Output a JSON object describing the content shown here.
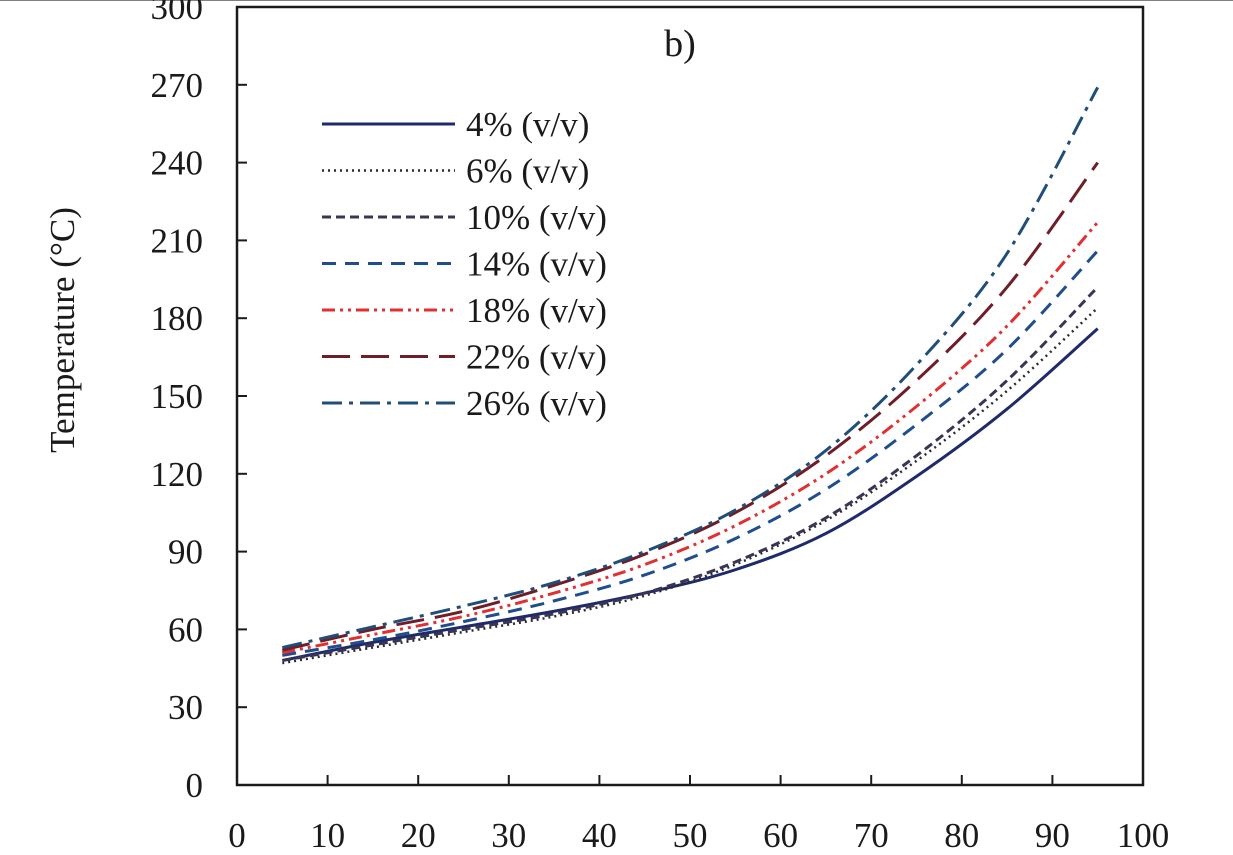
{
  "chart_data": {
    "type": "line",
    "panel_label": "b)",
    "title": "",
    "xlabel": "",
    "ylabel": "Temperature (°C)",
    "xlim": [
      0,
      100
    ],
    "ylim": [
      0,
      300
    ],
    "x_ticks": [
      0,
      10,
      20,
      30,
      40,
      50,
      60,
      70,
      80,
      90,
      100
    ],
    "y_ticks": [
      0,
      30,
      60,
      90,
      120,
      150,
      180,
      210,
      240,
      270,
      300
    ],
    "grid": false,
    "legend_position": "top-left",
    "x": [
      5,
      15,
      25,
      35,
      45,
      55,
      65,
      75,
      85,
      95
    ],
    "series": [
      {
        "name": "4% (v/v)",
        "color": "#1f2a6b",
        "style": "solid",
        "values": [
          48,
          55,
          61,
          67,
          74,
          83,
          97,
          119,
          145,
          176
        ]
      },
      {
        "name": "6% (v/v)",
        "color": "#2b2b2b",
        "style": "dotted",
        "values": [
          47,
          53,
          59,
          65,
          73,
          85,
          102,
          125,
          152,
          184
        ]
      },
      {
        "name": "10% (v/v)",
        "color": "#3a3555",
        "style": "dashed",
        "values": [
          48,
          54,
          60,
          66,
          74,
          86,
          103,
          127,
          156,
          192
        ]
      },
      {
        "name": "14% (v/v)",
        "color": "#1f4e8c",
        "style": "dashed2",
        "values": [
          50,
          56,
          63,
          71,
          81,
          95,
          114,
          139,
          168,
          206
        ]
      },
      {
        "name": "18% (v/v)",
        "color": "#e03030",
        "style": "dashdotdot",
        "values": [
          51,
          58,
          65,
          74,
          85,
          100,
          120,
          146,
          177,
          217
        ]
      },
      {
        "name": "22% (v/v)",
        "color": "#6e1e28",
        "style": "longdash",
        "values": [
          52,
          60,
          67,
          77,
          89,
          105,
          127,
          156,
          192,
          240
        ]
      },
      {
        "name": "26% (v/v)",
        "color": "#1f4e79",
        "style": "dashdot",
        "values": [
          53,
          61,
          69,
          78,
          90,
          106,
          129,
          162,
          205,
          269
        ]
      }
    ]
  }
}
